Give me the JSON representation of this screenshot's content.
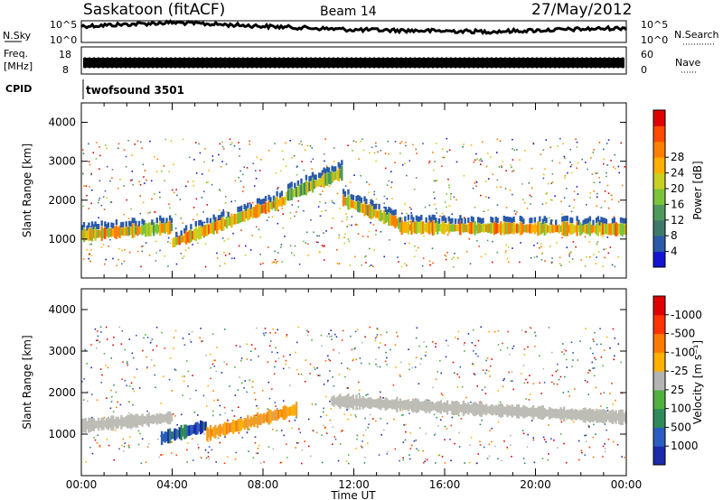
{
  "header": {
    "station": "Saskatoon (fitACF)",
    "beam": "Beam 14",
    "date": "27/May/2012"
  },
  "noise_panel": {
    "left_label": "N.Sky",
    "left_ticks": [
      "10^5",
      "10^0"
    ],
    "right_label": "N.Search",
    "right_ticks": [
      "10^5",
      "10^0"
    ]
  },
  "freq_panel": {
    "left_label_1": "Freq.",
    "left_label_2": "[MHz]",
    "left_ticks": [
      "18",
      "8"
    ],
    "right_label": "Nave",
    "right_ticks": [
      "60",
      "0"
    ]
  },
  "cpid": {
    "label": "CPID",
    "value": "twofsound 3501"
  },
  "chart_data": [
    {
      "type": "heatmap",
      "panel": "power",
      "ylabel": "Slant Range [km]",
      "y_ticks": [
        1000,
        2000,
        3000,
        4000
      ],
      "ylim": [
        0,
        4500
      ],
      "x_ticks": [
        "00:00",
        "04:00",
        "08:00",
        "12:00",
        "16:00",
        "20:00",
        "00:00"
      ],
      "xlim_hours": [
        0,
        24
      ],
      "colorbar": {
        "label": "Power [dB]",
        "ticks": [
          4,
          8,
          12,
          16,
          20,
          24,
          28
        ],
        "range": [
          0,
          32
        ],
        "colors": [
          "#1414d2",
          "#2a5aa8",
          "#3e7a6a",
          "#4e9a5a",
          "#7cc43a",
          "#c8d020",
          "#ffb000",
          "#ff8000",
          "#ff4a00",
          "#e00000"
        ]
      },
      "bands": [
        {
          "name": "main-echo",
          "from_hour": 0.0,
          "to_hour": 4.0,
          "range_start_km": 1100,
          "range_end_km": 1300,
          "power_db": 26
        },
        {
          "name": "main-echo",
          "from_hour": 4.0,
          "to_hour": 9.0,
          "range_start_km": 900,
          "range_end_km": 2000,
          "power_db": 28
        },
        {
          "name": "main-echo",
          "from_hour": 9.0,
          "to_hour": 11.5,
          "range_start_km": 2100,
          "range_end_km": 2700,
          "power_db": 22
        },
        {
          "name": "main-echo",
          "from_hour": 11.5,
          "to_hour": 14.0,
          "range_start_km": 2000,
          "range_end_km": 1400,
          "power_db": 26
        },
        {
          "name": "main-echo",
          "from_hour": 14.0,
          "to_hour": 24.0,
          "range_start_km": 1300,
          "range_end_km": 1250,
          "power_db": 27
        }
      ]
    },
    {
      "type": "heatmap",
      "panel": "velocity",
      "xlabel": "Time UT",
      "ylabel": "Slant Range [km]",
      "y_ticks": [
        1000,
        2000,
        3000,
        4000
      ],
      "ylim": [
        0,
        4500
      ],
      "x_ticks": [
        "00:00",
        "04:00",
        "08:00",
        "12:00",
        "16:00",
        "20:00",
        "00:00"
      ],
      "xlim_hours": [
        0,
        24
      ],
      "colorbar": {
        "label": "Velocity [m s⁻¹]",
        "ticks": [
          "1000",
          "500",
          "100",
          "25",
          "-25",
          "-100",
          "-500",
          "-1000"
        ],
        "colors": [
          "#1a2aa8",
          "#2b5cc0",
          "#2e8a5a",
          "#50b040",
          "#b4b4b4",
          "#ffb000",
          "#ff7a00",
          "#ff3300",
          "#e00000"
        ]
      },
      "bands": [
        {
          "name": "ground-scatter",
          "from_hour": 0.0,
          "to_hour": 4.0,
          "range_start_km": 1200,
          "range_end_km": 1400,
          "velocity": 0
        },
        {
          "name": "ground-scatter",
          "from_hour": 11.0,
          "to_hour": 24.0,
          "range_start_km": 1800,
          "range_end_km": 1400,
          "velocity": 0
        },
        {
          "name": "ionospheric",
          "from_hour": 3.5,
          "to_hour": 5.5,
          "range_start_km": 900,
          "range_end_km": 1200,
          "velocity": 700
        },
        {
          "name": "ionospheric",
          "from_hour": 5.5,
          "to_hour": 9.5,
          "range_start_km": 1000,
          "range_end_km": 1600,
          "velocity": -150
        }
      ]
    }
  ]
}
